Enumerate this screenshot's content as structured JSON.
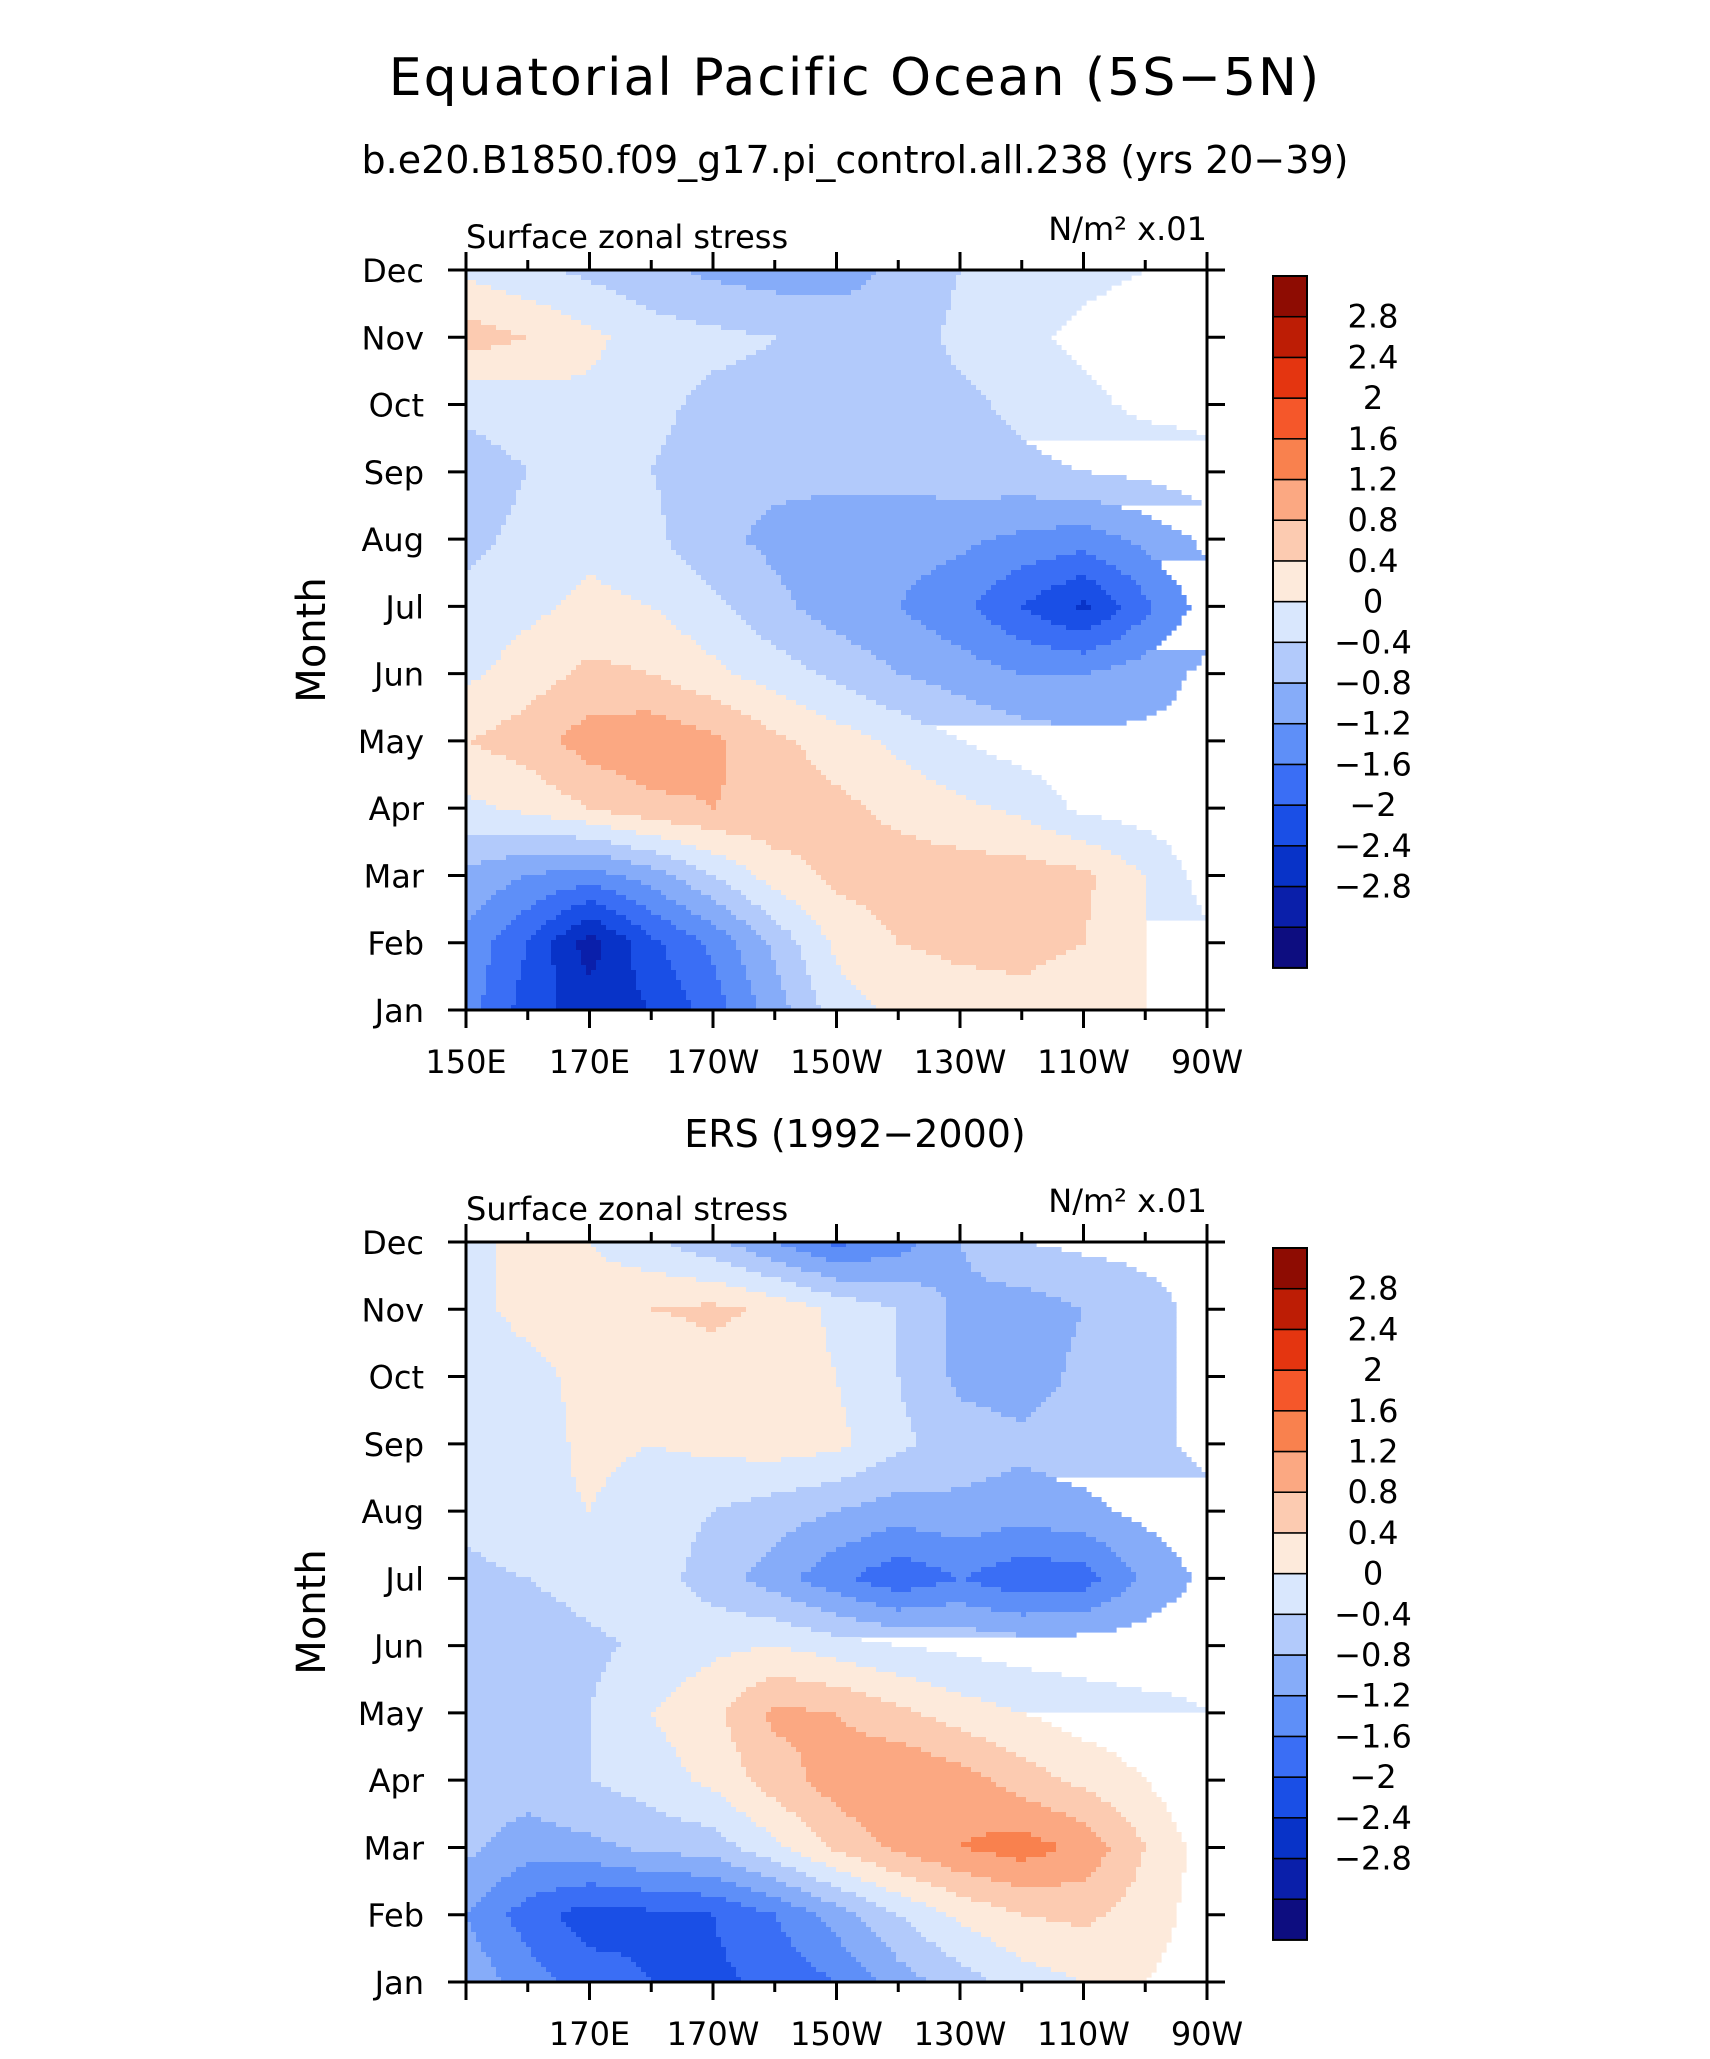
{
  "figure": {
    "title": "Equatorial Pacific Ocean (5S−5N)",
    "subtitle_top": "b.e20.B1850.f09_g17.pi_control.all.238 (yrs 20−39)",
    "subtitle_bottom": "ERS (1992−2000)"
  },
  "colors": {
    "levels": [
      "#0d0d80",
      "#0a1faa",
      "#0833c8",
      "#1a4fe6",
      "#3a6ef5",
      "#5e8ff8",
      "#86acf9",
      "#b2cafb",
      "#d9e7fd",
      "#fdeadb",
      "#fccbb1",
      "#fba882",
      "#f9814e",
      "#f5572a",
      "#e43510",
      "#bd1d05",
      "#8e0c02"
    ],
    "frame": "#000000"
  },
  "chart_data": [
    {
      "type": "heatmap",
      "panel": "model",
      "title": "Surface zonal stress",
      "units": "N/m² x.01",
      "ylabel": "Month",
      "x_range": [
        150,
        270
      ],
      "x_ticks": [
        150,
        170,
        190,
        210,
        230,
        250,
        270
      ],
      "x_tick_labels": [
        "150E",
        "170E",
        "170W",
        "150W",
        "130W",
        "110W",
        "90W"
      ],
      "y_tick_labels": [
        "Jan",
        "Feb",
        "Mar",
        "Apr",
        "May",
        "Jun",
        "Jul",
        "Aug",
        "Sep",
        "Oct",
        "Nov",
        "Dec"
      ],
      "colorbar_labels": [
        "2.8",
        "2.4",
        "2",
        "1.6",
        "1.2",
        "0.8",
        "0.4",
        "0",
        "−0.4",
        "−0.8",
        "−1.2",
        "−1.6",
        "−2",
        "−2.4",
        "−2.8"
      ],
      "contour_levels": [
        -3.0,
        -2.8,
        -2.4,
        -2.0,
        -1.6,
        -1.2,
        -0.8,
        -0.4,
        0,
        0.4,
        0.8,
        1.2,
        1.6,
        2.0,
        2.4,
        2.8,
        3.0
      ],
      "lons": [
        150,
        160,
        170,
        180,
        190,
        200,
        210,
        220,
        230,
        240,
        250,
        260,
        270
      ],
      "values": [
        [
          -1.0,
          -1.8,
          -2.2,
          -2.0,
          -1.4,
          -0.6,
          0.2,
          0.5,
          0.6,
          0.7,
          0.6,
          0.4,
          0.1
        ],
        [
          -0.9,
          -1.6,
          -2.6,
          -1.7,
          -1.1,
          -0.3,
          0.5,
          0.8,
          0.9,
          0.9,
          0.8,
          0.4,
          0.1
        ],
        [
          -0.5,
          -0.8,
          -1.0,
          -0.6,
          0.0,
          0.6,
          0.9,
          1.0,
          1.0,
          1.0,
          0.9,
          0.4,
          -0.2
        ],
        [
          0.3,
          0.5,
          0.8,
          1.1,
          1.2,
          1.1,
          0.9,
          0.7,
          0.5,
          0.3,
          -0.1,
          -0.2,
          -0.3
        ],
        [
          0.8,
          1.0,
          1.4,
          1.5,
          1.3,
          0.9,
          0.6,
          0.3,
          0.0,
          -0.2,
          -0.3,
          -0.3,
          -0.3
        ],
        [
          0.3,
          0.6,
          0.9,
          0.8,
          0.5,
          0.2,
          -0.1,
          -0.4,
          -0.6,
          -0.8,
          -0.8,
          -0.6,
          -0.3
        ],
        [
          0.1,
          0.3,
          0.5,
          0.4,
          0.1,
          -0.3,
          -0.6,
          -0.8,
          -1.1,
          -1.6,
          -2.1,
          -1.3,
          -0.6
        ],
        [
          -0.1,
          0.1,
          0.3,
          0.1,
          -0.3,
          -0.5,
          -0.6,
          -0.6,
          -0.7,
          -0.9,
          -1.0,
          -0.7,
          -0.3
        ],
        [
          -0.2,
          0.0,
          0.1,
          0.0,
          -0.2,
          -0.3,
          -0.3,
          -0.3,
          -0.2,
          -0.1,
          0.0,
          0.1,
          0.3
        ],
        [
          0.1,
          0.2,
          0.3,
          0.1,
          -0.1,
          -0.1,
          -0.2,
          -0.2,
          -0.1,
          0.1,
          0.3,
          0.5,
          0.5
        ],
        [
          1.0,
          0.8,
          0.5,
          0.2,
          0.1,
          0.0,
          -0.1,
          -0.2,
          0.1,
          0.3,
          0.5,
          0.6,
          0.6
        ],
        [
          0.3,
          0.1,
          -0.1,
          -0.3,
          -0.5,
          -0.6,
          -0.6,
          -0.3,
          0.0,
          0.2,
          0.3,
          0.4,
          0.4
        ]
      ]
    },
    {
      "type": "heatmap",
      "panel": "observations",
      "title": "Surface zonal stress",
      "units": "N/m² x.01",
      "ylabel": "Month",
      "x_range": [
        150,
        270
      ],
      "x_ticks": [
        170,
        190,
        210,
        230,
        250,
        270
      ],
      "x_tick_labels": [
        "170E",
        "170W",
        "150W",
        "130W",
        "110W",
        "90W"
      ],
      "y_tick_labels": [
        "Jan",
        "Feb",
        "Mar",
        "Apr",
        "May",
        "Jun",
        "Jul",
        "Aug",
        "Sep",
        "Oct",
        "Nov",
        "Dec"
      ],
      "colorbar_labels": [
        "2.8",
        "2.4",
        "2",
        "1.6",
        "1.2",
        "0.8",
        "0.4",
        "0",
        "−0.4",
        "−0.8",
        "−1.2",
        "−1.6",
        "−2",
        "−2.4",
        "−2.8"
      ],
      "contour_levels": [
        -3.0,
        -2.8,
        -2.4,
        -2.0,
        -1.6,
        -1.2,
        -0.8,
        -0.4,
        0,
        0.4,
        0.8,
        1.2,
        1.6,
        2.0,
        2.4,
        2.8,
        3.0
      ],
      "lons": [
        150,
        160,
        170,
        180,
        190,
        200,
        210,
        220,
        230,
        240,
        250,
        260,
        270
      ],
      "values": [
        [
          -0.5,
          -1.0,
          -1.4,
          -1.6,
          -1.7,
          -1.5,
          -1.2,
          -0.6,
          -0.2,
          0.2,
          0.4,
          0.4,
          0.2
        ],
        [
          -0.8,
          -1.4,
          -1.8,
          -1.7,
          -1.6,
          -1.2,
          -0.6,
          0.0,
          0.5,
          0.8,
          0.9,
          0.6,
          0.2
        ],
        [
          -0.3,
          -0.6,
          -0.5,
          -0.3,
          -0.2,
          0.3,
          0.9,
          1.3,
          1.6,
          1.8,
          1.5,
          0.8,
          0.2
        ],
        [
          -0.2,
          -0.2,
          0.0,
          0.2,
          0.5,
          1.0,
          1.4,
          1.6,
          1.4,
          1.0,
          0.7,
          0.4,
          0.0
        ],
        [
          -0.2,
          -0.1,
          0.0,
          0.4,
          0.7,
          1.3,
          1.2,
          0.9,
          0.6,
          0.4,
          0.2,
          0.1,
          0.0
        ],
        [
          -0.4,
          -0.3,
          -0.1,
          0.1,
          0.3,
          0.4,
          0.2,
          0.0,
          -0.1,
          -0.2,
          -0.2,
          -0.2,
          -0.1
        ],
        [
          -0.1,
          0.0,
          0.2,
          0.2,
          -0.2,
          -0.6,
          -1.1,
          -1.5,
          -1.2,
          -1.5,
          -1.4,
          -0.7,
          -0.3
        ],
        [
          0.1,
          0.3,
          0.4,
          0.2,
          0.0,
          -0.2,
          -0.4,
          -0.6,
          -0.5,
          -0.6,
          -0.5,
          -0.3,
          -0.1
        ],
        [
          0.1,
          0.2,
          0.5,
          0.4,
          0.5,
          0.6,
          0.5,
          0.1,
          -0.2,
          -0.3,
          -0.2,
          -0.1,
          0.1
        ],
        [
          0.2,
          0.3,
          0.5,
          0.4,
          0.6,
          0.6,
          0.4,
          0.0,
          -0.5,
          -0.6,
          -0.3,
          -0.1,
          0.1
        ],
        [
          0.3,
          0.5,
          0.6,
          0.8,
          0.9,
          0.7,
          0.3,
          0.0,
          -0.5,
          -0.6,
          -0.4,
          -0.1,
          0.1
        ],
        [
          0.3,
          0.5,
          0.4,
          0.1,
          -0.3,
          -0.8,
          -1.3,
          -1.0,
          -0.4,
          0.0,
          0.1,
          0.1,
          0.0
        ]
      ]
    }
  ]
}
